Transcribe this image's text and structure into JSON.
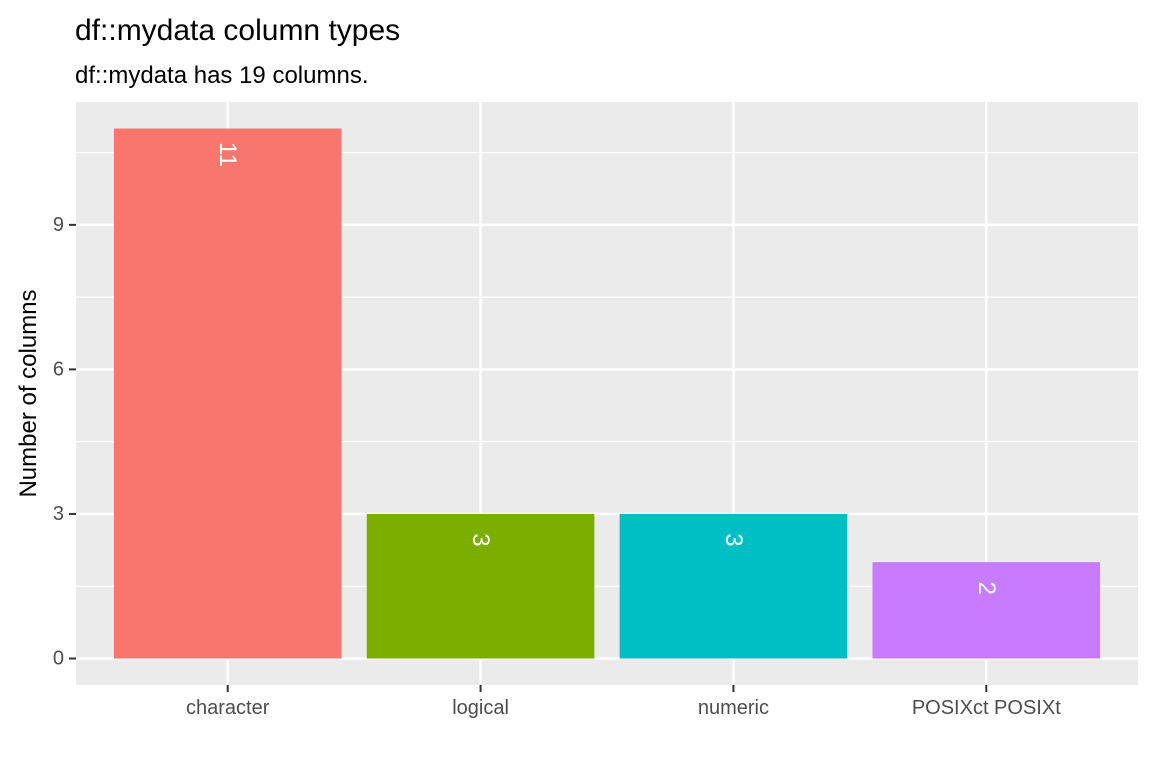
{
  "chart_data": {
    "type": "bar",
    "title": "df::mydata column types",
    "subtitle": "df::mydata has 19 columns.",
    "xlabel": "",
    "ylabel": "Number of columns",
    "categories": [
      "character",
      "logical",
      "numeric",
      "POSIXct POSIXt"
    ],
    "values": [
      11,
      3,
      3,
      2
    ],
    "data_labels": [
      "11",
      "3",
      "3",
      "2"
    ],
    "colors": [
      "#F8766D",
      "#7CAE00",
      "#00BFC4",
      "#C77CFF"
    ],
    "ylim": [
      -0.55,
      11.55
    ],
    "yticks": [
      0,
      3,
      6,
      9
    ],
    "ytick_labels": [
      "0",
      "3",
      "6",
      "9"
    ],
    "grid": true,
    "panel_background": "#EBEBEB",
    "legend": "none"
  }
}
